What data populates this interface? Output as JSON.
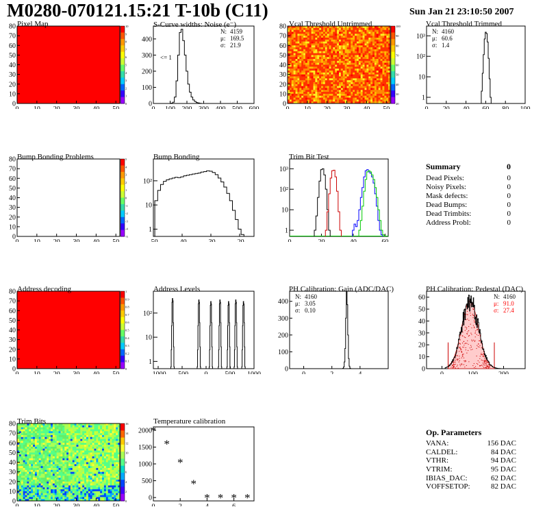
{
  "header": {
    "title": "M0280-070121.15:21 T-10b (C11)",
    "datetime": "Sun Jan 21 23:10:50 2007"
  },
  "colors": {
    "red_fill": "#ff0000",
    "hist_line": "#000000",
    "red_line": "#cc0000",
    "blue_line": "#0000ff",
    "green_line": "#00c800"
  },
  "chart_data": [
    {
      "id": "pixel_map",
      "type": "heatmap",
      "title": "Pixel Map",
      "x_ticks": [
        "0",
        "10",
        "20",
        "30",
        "40",
        "50"
      ],
      "y_ticks": [
        "0",
        "10",
        "20",
        "30",
        "40",
        "50",
        "60",
        "70",
        "80"
      ],
      "xlim": [
        0,
        52
      ],
      "ylim": [
        0,
        80
      ],
      "fill": "uniform red",
      "palette_ticks": [
        "10",
        "9",
        "8",
        "7",
        "6",
        "5",
        "4",
        "3",
        "2",
        "1",
        "0"
      ]
    },
    {
      "id": "scurve_widths",
      "type": "bar",
      "title": "S-Curve widths: Noise (e⁻)",
      "x_ticks": [
        "0",
        "100",
        "200",
        "300",
        "400",
        "500",
        "600"
      ],
      "y_ticks": [
        "0",
        "100",
        "200",
        "300",
        "400"
      ],
      "xlim": [
        0,
        600
      ],
      "ylim": [
        0,
        480
      ],
      "stats": [
        {
          "label": "N:",
          "value": "4159"
        },
        {
          "label": "μ:",
          "value": "169.5"
        },
        {
          "label": "σ:",
          "value": "21.9"
        }
      ],
      "annotation": "<= 1",
      "x": [
        110,
        120,
        130,
        140,
        150,
        160,
        170,
        180,
        190,
        200,
        210,
        220,
        230,
        240,
        250,
        260,
        270,
        280,
        290
      ],
      "values": [
        2,
        8,
        40,
        140,
        300,
        440,
        460,
        390,
        300,
        200,
        120,
        70,
        40,
        22,
        12,
        6,
        3,
        1,
        0
      ]
    },
    {
      "id": "vcal_untrimmed",
      "type": "heatmap",
      "title": "Vcal Threshold Untrimmed",
      "x_ticks": [
        "0",
        "10",
        "20",
        "30",
        "40",
        "50"
      ],
      "y_ticks": [
        "0",
        "10",
        "20",
        "30",
        "40",
        "50",
        "60",
        "70",
        "80"
      ],
      "xlim": [
        0,
        52
      ],
      "ylim": [
        0,
        80
      ],
      "palette_ticks": [
        "100",
        "90",
        "80",
        "70",
        "60",
        "50",
        "40",
        "30",
        "20"
      ]
    },
    {
      "id": "vcal_trimmed",
      "type": "bar",
      "title": "Vcal Threshold Trimmed",
      "log_y": true,
      "x_ticks": [
        "0",
        "20",
        "40",
        "60",
        "80",
        "100"
      ],
      "y_ticks": [
        "1",
        "10",
        "10²",
        "10³"
      ],
      "xlim": [
        0,
        100
      ],
      "ylim": [
        0.5,
        3000
      ],
      "stats": [
        {
          "label": "N:",
          "value": "4160"
        },
        {
          "label": "μ:",
          "value": "60.6"
        },
        {
          "label": "σ:",
          "value": "1.4"
        }
      ],
      "x": [
        56,
        57,
        58,
        59,
        60,
        61,
        62,
        63,
        64,
        65
      ],
      "values": [
        2,
        15,
        120,
        700,
        1500,
        1300,
        500,
        80,
        8,
        1
      ]
    },
    {
      "id": "bump_problems",
      "type": "heatmap",
      "title": "Bump Bonding Problems",
      "x_ticks": [
        "0",
        "10",
        "20",
        "30",
        "40",
        "50"
      ],
      "y_ticks": [
        "0",
        "10",
        "20",
        "30",
        "40",
        "50",
        "60",
        "70",
        "80"
      ],
      "xlim": [
        0,
        52
      ],
      "ylim": [
        0,
        80
      ],
      "fill": "empty",
      "palette_ticks": [
        "5",
        "4",
        "3",
        "2",
        "1",
        "0",
        "-1",
        "-2",
        "-3",
        "-4",
        "-5"
      ]
    },
    {
      "id": "bump_bonding",
      "type": "line",
      "title": "Bump Bonding",
      "log_y": true,
      "x_ticks": [
        "-50",
        "-40",
        "-30",
        "-20"
      ],
      "y_ticks": [
        "1",
        "10",
        "10²"
      ],
      "xlim": [
        -50,
        -15
      ],
      "ylim": [
        0.5,
        800
      ],
      "x": [
        -49,
        -48,
        -47,
        -46,
        -45,
        -44,
        -43,
        -42,
        -41,
        -40,
        -39,
        -38,
        -37,
        -36,
        -35,
        -34,
        -33,
        -32,
        -31,
        -30,
        -29,
        -28,
        -27,
        -26,
        -25,
        -24,
        -23,
        -22,
        -21,
        -20,
        -19
      ],
      "values": [
        15,
        40,
        70,
        95,
        110,
        120,
        130,
        140,
        135,
        145,
        160,
        170,
        180,
        190,
        200,
        210,
        230,
        240,
        260,
        250,
        220,
        180,
        130,
        90,
        55,
        30,
        15,
        6,
        2.5,
        1,
        0.6
      ]
    },
    {
      "id": "trim_bit_test",
      "type": "line",
      "title": "Trim Bit Test",
      "log_y": true,
      "x_ticks": [
        "0",
        "20",
        "40",
        "60"
      ],
      "y_ticks": [
        "1",
        "10",
        "10²",
        "10³"
      ],
      "xlim": [
        0,
        62
      ],
      "ylim": [
        0.5,
        3000
      ],
      "series": [
        {
          "color": "#000000",
          "x": [
            16,
            17,
            18,
            19,
            20,
            21,
            22,
            23,
            24,
            25
          ],
          "values": [
            1,
            5,
            40,
            250,
            900,
            1000,
            500,
            100,
            10,
            1
          ]
        },
        {
          "color": "#cc0000",
          "x": [
            23,
            24,
            25,
            26,
            27,
            28,
            29,
            30,
            31,
            32
          ],
          "values": [
            1,
            8,
            60,
            350,
            800,
            850,
            400,
            80,
            8,
            1
          ]
        },
        {
          "color": "#0000ff",
          "x": [
            40,
            41,
            42,
            43,
            44,
            45,
            46,
            47,
            48,
            49,
            50,
            51,
            52,
            53,
            54,
            55,
            56,
            57,
            58
          ],
          "values": [
            1,
            2,
            1.5,
            3,
            10,
            40,
            120,
            400,
            800,
            900,
            700,
            600,
            400,
            200,
            60,
            15,
            3,
            1,
            0.6
          ]
        },
        {
          "color": "#00c800",
          "x": [
            44,
            45,
            46,
            47,
            48,
            49,
            50,
            51,
            52,
            53,
            54,
            55,
            56,
            57,
            58,
            59
          ],
          "values": [
            1,
            3,
            15,
            80,
            300,
            700,
            800,
            700,
            500,
            300,
            120,
            40,
            10,
            3,
            1,
            0.6
          ]
        }
      ]
    },
    {
      "id": "address_decoding",
      "type": "heatmap",
      "title": "Address decoding",
      "x_ticks": [
        "0",
        "10",
        "20",
        "30",
        "40",
        "50"
      ],
      "y_ticks": [
        "0",
        "10",
        "20",
        "30",
        "40",
        "50",
        "60",
        "70",
        "80"
      ],
      "xlim": [
        0,
        52
      ],
      "ylim": [
        0,
        80
      ],
      "fill": "uniform red",
      "palette_ticks": [
        "1",
        "0.9",
        "0.8",
        "0.7",
        "0.6",
        "0.5",
        "0.4",
        "0.3",
        "0.2",
        "0.1",
        "0"
      ]
    },
    {
      "id": "address_levels",
      "type": "line",
      "title": "Address Levels",
      "log_y": true,
      "x_ticks": [
        "-1000",
        "-500",
        "0",
        "500",
        "1000"
      ],
      "y_ticks": [
        "1",
        "10",
        "10²"
      ],
      "xlim": [
        -1100,
        1000
      ],
      "ylim": [
        0.5,
        800
      ],
      "peaks": [
        -700,
        -150,
        100,
        290,
        470,
        620,
        780
      ],
      "peak_values": [
        400,
        350,
        300,
        350,
        300,
        350,
        300
      ]
    },
    {
      "id": "ph_gain",
      "type": "bar",
      "title": "PH Calibration: Gain (ADC/DAC)",
      "x_ticks": [
        "0",
        "2",
        "4"
      ],
      "y_ticks": [
        "0",
        "100",
        "200",
        "300",
        "400"
      ],
      "xlim": [
        -1,
        6
      ],
      "ylim": [
        0,
        460
      ],
      "stats": [
        {
          "label": "N:",
          "value": "4160"
        },
        {
          "label": "μ:",
          "value": "3.05"
        },
        {
          "label": "σ:",
          "value": "0.10"
        }
      ],
      "x": [
        2.8,
        2.85,
        2.9,
        2.95,
        3.0,
        3.05,
        3.1,
        3.15,
        3.2,
        3.25,
        3.3
      ],
      "values": [
        2,
        10,
        40,
        120,
        300,
        460,
        380,
        200,
        60,
        15,
        3
      ]
    },
    {
      "id": "ph_pedestal",
      "type": "bar",
      "title": "PH Calibration: Pedestal (DAC)",
      "x_ticks": [
        "0",
        "100",
        "200"
      ],
      "y_ticks": [
        "0",
        "10",
        "20",
        "30",
        "40",
        "50",
        "60"
      ],
      "xlim": [
        -50,
        270
      ],
      "ylim": [
        0,
        65
      ],
      "stats": [
        {
          "label": "N:",
          "value": "4160",
          "color": "#000000"
        },
        {
          "label": "μ:",
          "value": "91.0",
          "color": "#ff0000"
        },
        {
          "label": "σ:",
          "value": "27.4",
          "color": "#ff0000"
        }
      ],
      "x": [
        30,
        40,
        50,
        60,
        70,
        80,
        90,
        100,
        110,
        120,
        130,
        140,
        150,
        160
      ],
      "values": [
        5,
        10,
        20,
        32,
        42,
        52,
        57,
        56,
        50,
        40,
        28,
        16,
        8,
        3
      ]
    },
    {
      "id": "trim_bits",
      "type": "heatmap",
      "title": "Trim Bits",
      "x_ticks": [
        "0",
        "10",
        "20",
        "30",
        "40",
        "50"
      ],
      "y_ticks": [
        "0",
        "10",
        "20",
        "30",
        "40",
        "50",
        "60",
        "70",
        "80"
      ],
      "xlim": [
        0,
        52
      ],
      "ylim": [
        0,
        80
      ],
      "palette_ticks": [
        "16",
        "14",
        "12",
        "10",
        "8",
        "6",
        "4",
        "2",
        "0"
      ]
    },
    {
      "id": "temperature_calibration",
      "type": "scatter",
      "title": "Temperature calibration",
      "x_ticks": [
        "0",
        "2",
        "4",
        "6"
      ],
      "y_ticks": [
        "0",
        "500",
        "1000",
        "1500",
        "2000"
      ],
      "xlim": [
        0,
        7.5
      ],
      "ylim": [
        -100,
        2100
      ],
      "x": [
        0,
        1,
        2,
        3,
        4,
        5,
        6,
        7
      ],
      "values": [
        2000,
        1600,
        1050,
        420,
        0,
        0,
        0,
        0
      ]
    }
  ],
  "summary": {
    "title": "Summary",
    "value": "0",
    "rows": [
      {
        "label": "Dead Pixels:",
        "value": "0"
      },
      {
        "label": "Noisy Pixels:",
        "value": "0"
      },
      {
        "label": "Mask defects:",
        "value": "0"
      },
      {
        "label": "Dead Bumps:",
        "value": "0"
      },
      {
        "label": "Dead Trimbits:",
        "value": "0"
      },
      {
        "label": "Address Probl:",
        "value": "0"
      }
    ]
  },
  "op_parameters": {
    "title": "Op. Parameters",
    "rows": [
      {
        "label": "VANA:",
        "value": "156 DAC"
      },
      {
        "label": "CALDEL:",
        "value": "84 DAC"
      },
      {
        "label": "VTHR:",
        "value": "94 DAC"
      },
      {
        "label": "VTRIM:",
        "value": "95 DAC"
      },
      {
        "label": "IBIAS_DAC:",
        "value": "62 DAC"
      },
      {
        "label": "VOFFSETOP:",
        "value": "82 DAC"
      }
    ]
  }
}
